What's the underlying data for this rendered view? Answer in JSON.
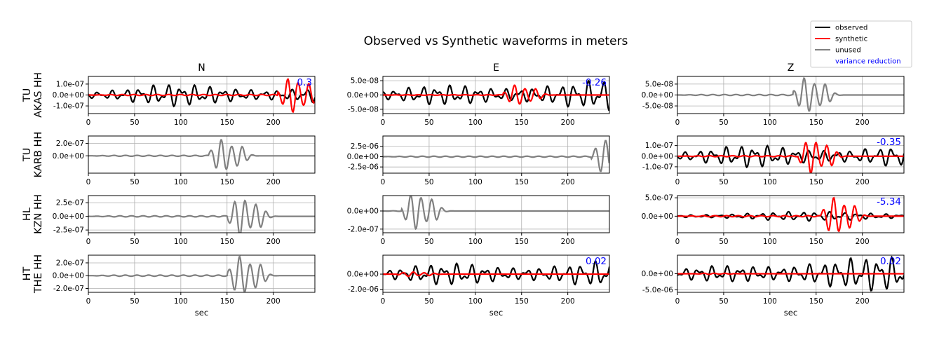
{
  "title": "Observed vs Synthetic waveforms in meters",
  "legend": {
    "position": "top-right",
    "entries": [
      {
        "label": "observed",
        "color": "#000000",
        "kind": "line"
      },
      {
        "label": "synthetic",
        "color": "#ff0000",
        "kind": "line"
      },
      {
        "label": "unused",
        "color": "#808080",
        "kind": "line"
      },
      {
        "label": "variance reduction",
        "color": "#0000ff",
        "kind": "text"
      }
    ]
  },
  "chart_data": {
    "type": "line",
    "columns": [
      "N",
      "E",
      "Z"
    ],
    "rows": [
      {
        "net": "TU",
        "sta": "AKAS HH"
      },
      {
        "net": "TU",
        "sta": "KARB HH"
      },
      {
        "net": "HL",
        "sta": "KZN HH"
      },
      {
        "net": "HT",
        "sta": "THE HH"
      }
    ],
    "xlabel": "sec",
    "xlim": [
      0,
      245
    ],
    "xticks": [
      0,
      50,
      100,
      150,
      200
    ],
    "grid": true,
    "panels": [
      {
        "col": "N",
        "row": 0,
        "used": true,
        "ylim": [
          -1.7e-07,
          1.7e-07
        ],
        "yticks": [
          1e-07,
          0,
          -1e-07
        ],
        "ytick_labels": [
          "1.0e-07",
          "0.0e+00",
          "-1.0e-07"
        ],
        "vr": "0.3",
        "observed": {
          "amp": 1.1e-07,
          "seed": 1
        },
        "synthetic": {
          "amp": 1.6e-07,
          "onset": 205
        }
      },
      {
        "col": "E",
        "row": 0,
        "used": true,
        "ylim": [
          -6.5e-08,
          6.5e-08
        ],
        "yticks": [
          5e-08,
          0,
          -5e-08
        ],
        "ytick_labels": [
          "5.0e-08",
          "0.0e+00",
          "-5.0e-08"
        ],
        "vr": "-0.26",
        "observed": {
          "amp": 5.5e-08,
          "seed": 2
        },
        "synthetic": {
          "amp": 3.5e-08,
          "onset": 130
        }
      },
      {
        "col": "Z",
        "row": 0,
        "used": false,
        "ylim": [
          -8.5e-08,
          8.5e-08
        ],
        "yticks": [
          5e-08,
          0,
          -5e-08
        ],
        "ytick_labels": [
          "5.0e-08",
          "0.0e+00",
          "-5.0e-08"
        ],
        "unused": {
          "amp": 8e-08,
          "seed": 3,
          "onset": 125
        }
      },
      {
        "col": "N",
        "row": 1,
        "used": false,
        "ylim": [
          -2.8e-07,
          3.2e-07
        ],
        "yticks": [
          2e-07,
          0
        ],
        "ytick_labels": [
          "2.0e-07",
          "0.0e+00"
        ],
        "unused": {
          "amp": 2.6e-07,
          "seed": 4,
          "onset": 130
        }
      },
      {
        "col": "E",
        "row": 1,
        "used": false,
        "ylim": [
          -4e-06,
          5e-06
        ],
        "yticks": [
          2.5e-06,
          0,
          -2.5e-06
        ],
        "ytick_labels": [
          "2.5e-06",
          "0.0e+00",
          "-2.5e-06"
        ],
        "unused": {
          "amp": 4e-06,
          "seed": 5,
          "onset": 225
        }
      },
      {
        "col": "Z",
        "row": 1,
        "used": true,
        "ylim": [
          -1.6e-07,
          1.9e-07
        ],
        "yticks": [
          1e-07,
          0,
          -1e-07
        ],
        "ytick_labels": [
          "1.0e-07",
          "0.0e+00",
          "-1.0e-07"
        ],
        "vr": "-0.35",
        "observed": {
          "amp": 1.3e-07,
          "seed": 6
        },
        "synthetic": {
          "amp": 1.6e-07,
          "onset": 130
        }
      },
      {
        "col": "N",
        "row": 2,
        "used": false,
        "ylim": [
          -3e-07,
          3.8e-07
        ],
        "yticks": [
          2.5e-07,
          0,
          -2.5e-07
        ],
        "ytick_labels": [
          "2.5e-07",
          "0.0e+00",
          "-2.5e-07"
        ],
        "unused": {
          "amp": 3.5e-07,
          "seed": 7,
          "onset": 150
        }
      },
      {
        "col": "E",
        "row": 2,
        "used": false,
        "ylim": [
          -2.4e-07,
          1.7e-07
        ],
        "yticks": [
          0,
          -2e-07
        ],
        "ytick_labels": [
          "0.0e+00",
          "-2.0e-07"
        ],
        "unused": {
          "amp": 2e-07,
          "seed": 8,
          "onset": 20
        }
      },
      {
        "col": "Z",
        "row": 2,
        "used": true,
        "ylim": [
          -4.5e-07,
          5.6e-07
        ],
        "yticks": [
          5e-07,
          0
        ],
        "ytick_labels": [
          "5.0e-07",
          "0.0e+00"
        ],
        "vr": "-5.34",
        "observed": {
          "amp": 1.3e-07,
          "seed": 9
        },
        "synthetic": {
          "amp": 5e-07,
          "onset": 155
        }
      },
      {
        "col": "N",
        "row": 3,
        "used": false,
        "ylim": [
          -2.6e-07,
          3.2e-07
        ],
        "yticks": [
          2e-07,
          0,
          -2e-07
        ],
        "ytick_labels": [
          "2.0e-07",
          "0.0e+00",
          "-2.0e-07"
        ],
        "unused": {
          "amp": 3e-07,
          "seed": 10,
          "onset": 150
        }
      },
      {
        "col": "E",
        "row": 3,
        "used": true,
        "ylim": [
          -2.4e-06,
          2.5e-06
        ],
        "yticks": [
          0,
          -2e-06
        ],
        "ytick_labels": [
          "0.0e+00",
          "-2.0e-06"
        ],
        "vr": "0.02",
        "observed": {
          "amp": 2e-06,
          "seed": 11
        },
        "synthetic": {
          "amp": 3e-07,
          "onset": 15
        }
      },
      {
        "col": "Z",
        "row": 3,
        "used": true,
        "ylim": [
          -5.8e-06,
          5.8e-06
        ],
        "yticks": [
          0,
          -5e-06
        ],
        "ytick_labels": [
          "0.0e+00",
          "-5.0e-06"
        ],
        "vr": "0.02",
        "observed": {
          "amp": 5.5e-06,
          "seed": 12
        },
        "synthetic": {
          "amp": 2e-07,
          "onset": 20
        }
      }
    ]
  }
}
